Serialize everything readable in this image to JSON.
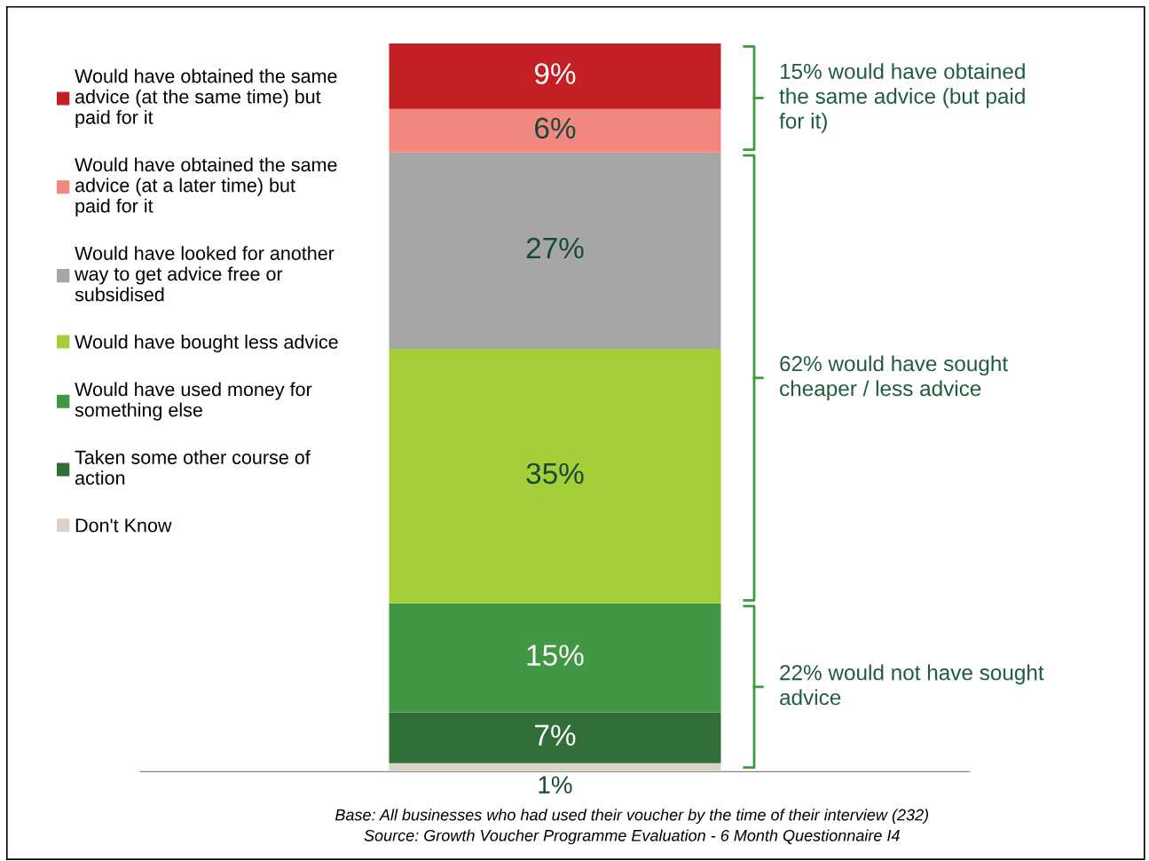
{
  "chart_data": {
    "type": "bar",
    "stacked": true,
    "categories": [
      null
    ],
    "legend": "left",
    "series": [
      {
        "name": "Don't Know",
        "color": "#d8d3c6",
        "values": [
          1
        ],
        "value_labels": [
          "1%"
        ]
      },
      {
        "name": "Taken some other course of action",
        "color": "#316e37",
        "values": [
          7
        ],
        "value_labels": [
          "7%"
        ]
      },
      {
        "name": "Would have used money for something else",
        "color": "#419744",
        "values": [
          15
        ],
        "value_labels": [
          "15%"
        ]
      },
      {
        "name": "Would have bought less advice",
        "color": "#a6ce39",
        "values": [
          35
        ],
        "value_labels": [
          "35%"
        ]
      },
      {
        "name": "Would have looked for another way to get advice free or subsidised",
        "color": "#a6a6a6",
        "values": [
          27
        ],
        "value_labels": [
          "27%"
        ]
      },
      {
        "name": "Would have obtained the same advice (at a later time) but paid for it",
        "color": "#f28880",
        "values": [
          6
        ],
        "value_labels": [
          "6%"
        ]
      },
      {
        "name": "Would have obtained the same advice (at the same time) but paid for it",
        "color": "#c32026",
        "values": [
          9
        ],
        "value_labels": [
          "9%"
        ]
      }
    ],
    "annotations": [
      "15% would have obtained the same advice (but paid for it)",
      "62% would have sought cheaper / less advice",
      "22% would not have sought advice",
      "Base: All businesses who had used their voucher by the time of their interview (232)",
      "Source: Growth Voucher Programme Evaluation - 6 Month Questionnaire I4"
    ]
  }
}
